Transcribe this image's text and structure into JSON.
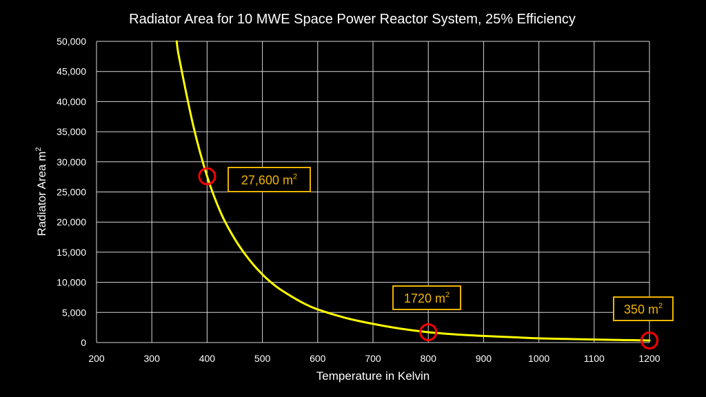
{
  "chart_data": {
    "type": "line",
    "title": "Radiator Area for 10 MWE Space Power Reactor System, 25% Efficiency",
    "xlabel": "Temperature in Kelvin",
    "ylabel": "Radiator Area m",
    "ylabel_sup": "2",
    "xlim": [
      200,
      1200
    ],
    "ylim": [
      0,
      50000
    ],
    "x_ticks": [
      200,
      300,
      400,
      500,
      600,
      700,
      800,
      900,
      1000,
      1100,
      1200
    ],
    "y_ticks": [
      0,
      5000,
      10000,
      15000,
      20000,
      25000,
      30000,
      35000,
      40000,
      45000,
      50000
    ],
    "y_tick_labels": [
      "0",
      "5,000",
      "10,000",
      "15,000",
      "20,000",
      "25,000",
      "30,000",
      "35,000",
      "40,000",
      "45,000",
      "50,000"
    ],
    "grid": true,
    "line_color": "#ffff00",
    "series": [
      {
        "x": [
          345,
          350,
          375,
          400,
          425,
          450,
          475,
          500,
          525,
          550,
          575,
          600,
          650,
          700,
          750,
          800,
          850,
          900,
          950,
          1000,
          1050,
          1100,
          1150,
          1200
        ],
        "values": [
          50000,
          47000,
          36000,
          27600,
          21500,
          17200,
          13900,
          11300,
          9300,
          7800,
          6500,
          5500,
          4100,
          3100,
          2300,
          1720,
          1350,
          1100,
          900,
          700,
          600,
          500,
          420,
          350
        ]
      }
    ],
    "annotations": [
      {
        "x": 400,
        "y": 27600,
        "text": "27,600 m",
        "sup": "2"
      },
      {
        "x": 800,
        "y": 1720,
        "text": "1720 m",
        "sup": "2"
      },
      {
        "x": 1200,
        "y": 350,
        "text": "350 m",
        "sup": "2"
      }
    ],
    "marker_color": "#ff0000",
    "callout_color": "#f0b400"
  }
}
